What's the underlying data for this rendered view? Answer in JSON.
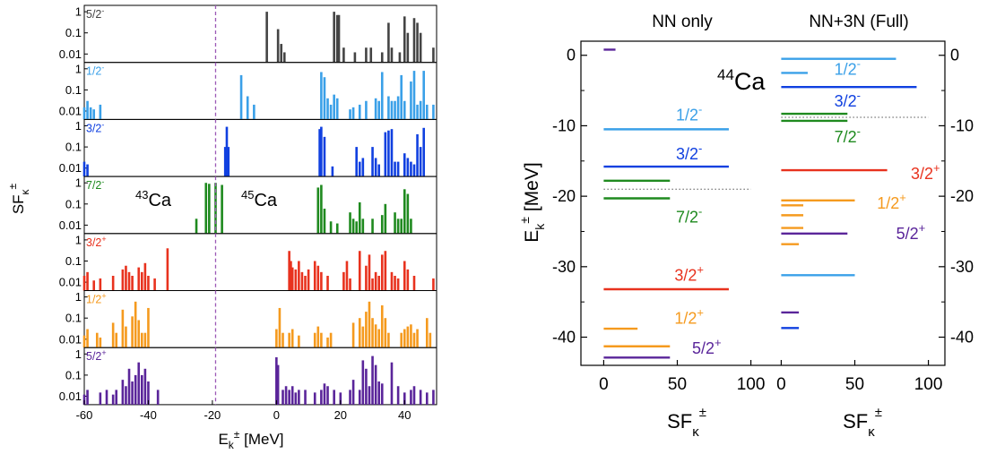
{
  "left_panel": {
    "ylabel": "SF",
    "ylabel_sub": "κ",
    "ylabel_sup": "±",
    "xlabel": "E",
    "xlabel_sub": "k",
    "xlabel_sup": "±",
    "xlabel_unit": "[MeV]",
    "nucleus_left_mass": "43",
    "nucleus_left_sym": "Ca",
    "nucleus_right_mass": "45",
    "nucleus_right_sym": "Ca",
    "ytick_labels": [
      "1",
      "0.1",
      "0.01"
    ],
    "xtick_labels": [
      "-60",
      "-40",
      "-20",
      "0",
      "20",
      "40"
    ]
  },
  "right_panel": {
    "col1_title": "NN only",
    "col2_title": "NN+3N (Full)",
    "ylabel": "E",
    "ylabel_sub": "k",
    "ylabel_sup": "±",
    "ylabel_unit": "[MeV]",
    "nucleus_mass": "44",
    "nucleus_sym": "Ca",
    "xlabel": "SF",
    "xlabel_sub": "κ",
    "xlabel_sup": "±",
    "ytick_labels": [
      "0",
      "-10",
      "-20",
      "-30",
      "-40"
    ],
    "xtick_labels": [
      "0",
      "50",
      "100"
    ]
  },
  "colors": {
    "5/2-": "#444444",
    "1/2-": "#3aa0e8",
    "3/2-": "#1040e0",
    "7/2-": "#1f8a1f",
    "3/2+": "#e8321e",
    "1/2+": "#f59a1e",
    "5/2+": "#5a259a",
    "fermi": "#9b59b6"
  },
  "chart_data": [
    {
      "type": "bar",
      "title": "",
      "xlabel": "E_k^± [MeV]",
      "ylabel": "SF_κ^±",
      "xlim": [
        -60,
        50
      ],
      "ylim": [
        0.004,
        2
      ],
      "yscale": "log",
      "fermi_energy": -19,
      "series": [
        {
          "name": "5/2-",
          "label_base": "5/2",
          "label_sup": "-",
          "color": "#444444",
          "x": [
            -3,
            0.5,
            1.5,
            2.5,
            18,
            19,
            19.5,
            21,
            24.5,
            28,
            29.5,
            33,
            35,
            36,
            38.5,
            40,
            41,
            43,
            44,
            45,
            49
          ],
          "values": [
            1.0,
            0.15,
            0.03,
            0.012,
            1.0,
            0.7,
            0.7,
            0.02,
            0.012,
            0.02,
            0.02,
            0.012,
            0.3,
            0.02,
            0.012,
            0.6,
            0.1,
            0.5,
            0.3,
            0.1,
            0.02
          ]
        },
        {
          "name": "1/2-",
          "label_base": "1/2",
          "label_sup": "-",
          "color": "#3aa0e8",
          "x": [
            -60,
            -59,
            -58,
            -57,
            -55,
            -11,
            -9,
            -7,
            14,
            15,
            16,
            17,
            18,
            19,
            23,
            24,
            26,
            28,
            31,
            32,
            33,
            35,
            36,
            37,
            38,
            39,
            40,
            42,
            43,
            44,
            45,
            46,
            47,
            49
          ],
          "values": [
            0.015,
            0.03,
            0.015,
            0.012,
            0.02,
            0.5,
            0.05,
            0.02,
            0.7,
            0.4,
            0.04,
            0.02,
            0.06,
            0.04,
            0.012,
            0.015,
            0.02,
            0.03,
            0.04,
            0.03,
            0.7,
            0.05,
            0.03,
            0.03,
            0.05,
            0.5,
            0.03,
            0.25,
            0.8,
            0.02,
            0.03,
            0.8,
            0.02,
            0.02
          ]
        },
        {
          "name": "3/2-",
          "label_base": "3/2",
          "label_sup": "-",
          "color": "#1040e0",
          "x": [
            -60,
            -59,
            -16,
            -15.5,
            -15,
            13.5,
            14,
            15,
            17.5,
            25,
            26,
            27,
            30,
            31,
            32,
            34,
            35,
            36,
            37,
            38,
            40,
            41,
            42,
            43,
            44,
            45,
            46
          ],
          "values": [
            0.02,
            0.015,
            0.1,
            0.9,
            0.1,
            0.7,
            0.9,
            0.3,
            0.012,
            0.1,
            0.02,
            0.03,
            0.1,
            0.03,
            0.015,
            0.5,
            0.6,
            0.7,
            0.02,
            0.02,
            0.05,
            0.03,
            0.02,
            0.015,
            0.4,
            0.1,
            0.8
          ]
        },
        {
          "name": "7/2-",
          "label_base": "7/2",
          "label_sup": "-",
          "color": "#1f8a1f",
          "x": [
            -25,
            -22,
            -21,
            -19,
            -17,
            13,
            14,
            15,
            17,
            19,
            23,
            24,
            25,
            26,
            27,
            30,
            33,
            34,
            37,
            38,
            39,
            40,
            41,
            42
          ],
          "values": [
            0.02,
            1.0,
            0.9,
            1.0,
            0.8,
            0.6,
            0.8,
            0.06,
            0.015,
            0.012,
            0.04,
            0.02,
            0.015,
            0.12,
            0.02,
            0.02,
            0.03,
            0.1,
            0.04,
            0.02,
            0.02,
            0.5,
            0.3,
            0.02
          ]
        },
        {
          "name": "3/2+",
          "label_base": "3/2",
          "label_sup": "+",
          "color": "#e8321e",
          "x": [
            -60,
            -59,
            -57,
            -55,
            -51,
            -48,
            -47,
            -46,
            -45,
            -43,
            -42,
            -41,
            -40,
            -38,
            -34,
            4,
            4.5,
            5,
            6,
            7,
            8,
            9,
            10,
            12,
            13,
            14,
            16,
            21,
            22,
            23,
            26,
            28,
            29,
            30,
            31,
            32,
            33,
            34,
            36,
            37,
            38,
            40,
            41,
            43,
            49
          ],
          "values": [
            0.02,
            0.03,
            0.012,
            0.015,
            0.02,
            0.04,
            0.06,
            0.03,
            0.02,
            0.05,
            0.03,
            0.08,
            0.02,
            0.015,
            0.4,
            0.3,
            0.1,
            0.05,
            0.04,
            0.1,
            0.03,
            0.02,
            0.04,
            0.1,
            0.06,
            0.03,
            0.02,
            0.03,
            0.1,
            0.015,
            0.3,
            0.06,
            0.2,
            0.015,
            0.03,
            0.02,
            0.2,
            0.3,
            0.03,
            0.02,
            0.015,
            0.1,
            0.04,
            0.02,
            0.015
          ]
        },
        {
          "name": "1/2+",
          "label_base": "1/2",
          "label_sup": "+",
          "color": "#f59a1e",
          "x": [
            -60,
            -59,
            -56,
            -55,
            -51,
            -50,
            -48,
            -47,
            -45,
            -44,
            -43,
            -42,
            -41,
            -40,
            0,
            1,
            2,
            4,
            5,
            7,
            12,
            13,
            14,
            16,
            17,
            24,
            26,
            27,
            28,
            29,
            30,
            31,
            32,
            33,
            34,
            35,
            39,
            40,
            41,
            42,
            43,
            44,
            47,
            48
          ],
          "values": [
            0.015,
            0.03,
            0.02,
            0.012,
            0.06,
            0.02,
            0.25,
            0.04,
            0.12,
            0.6,
            0.08,
            0.02,
            0.02,
            0.3,
            0.03,
            0.3,
            0.02,
            0.02,
            0.03,
            0.015,
            0.02,
            0.04,
            0.02,
            0.012,
            0.02,
            0.06,
            0.1,
            0.04,
            0.2,
            0.6,
            0.1,
            0.05,
            0.03,
            0.4,
            0.1,
            0.02,
            0.02,
            0.03,
            0.04,
            0.05,
            0.02,
            0.03,
            0.1,
            0.02
          ]
        },
        {
          "name": "5/2+",
          "label_base": "5/2",
          "label_sup": "+",
          "color": "#5a259a",
          "x": [
            -60,
            -59,
            -55,
            -53,
            -51,
            -50,
            -48,
            -47,
            -46,
            -45,
            -44,
            -43,
            -42,
            -41,
            -40,
            -37,
            0,
            0.5,
            2,
            3,
            4,
            5,
            6,
            7,
            9,
            12,
            14,
            15,
            16,
            18,
            20,
            23,
            24,
            26,
            27,
            28,
            29,
            30,
            31,
            32,
            33,
            36,
            38,
            40,
            42,
            43,
            45,
            47,
            49
          ],
          "values": [
            0.012,
            0.02,
            0.015,
            0.02,
            0.012,
            0.02,
            0.06,
            0.03,
            0.2,
            0.05,
            0.1,
            0.4,
            0.1,
            0.2,
            0.05,
            0.02,
            0.7,
            0.3,
            0.02,
            0.03,
            0.02,
            0.03,
            0.015,
            0.02,
            0.02,
            0.015,
            0.02,
            0.04,
            0.03,
            0.02,
            0.015,
            0.02,
            0.06,
            0.02,
            0.5,
            0.2,
            0.03,
            0.8,
            0.3,
            0.05,
            0.04,
            0.4,
            0.03,
            0.015,
            0.02,
            0.03,
            0.02,
            0.015,
            0.02
          ]
        }
      ]
    },
    {
      "type": "bar",
      "title": "",
      "xlabel": "SF_κ^±",
      "ylabel": "E_k^± [MeV]",
      "ylim": [
        -44,
        2
      ],
      "columns": [
        {
          "name": "NN only",
          "xlim": [
            -10,
            110
          ],
          "fermi_energy": -19,
          "levels": [
            {
              "state": "5/2-",
              "E": 0.8,
              "SF": 8,
              "color": "#5a259a"
            },
            {
              "state": "1/2-",
              "E": -10.5,
              "SF": 85,
              "color": "#3aa0e8"
            },
            {
              "state": "3/2-",
              "E": -15.8,
              "SF": 85,
              "color": "#1040e0"
            },
            {
              "state": "7/2-",
              "E": -17.8,
              "SF": 45,
              "color": "#1f8a1f"
            },
            {
              "state": "7/2-",
              "E": -20.3,
              "SF": 45,
              "color": "#1f8a1f"
            },
            {
              "state": "3/2+",
              "E": -33.2,
              "SF": 85,
              "color": "#e8321e"
            },
            {
              "state": "1/2+",
              "E": -38.8,
              "SF": 23,
              "color": "#f59a1e"
            },
            {
              "state": "1/2+",
              "E": -41.3,
              "SF": 45,
              "color": "#f59a1e"
            },
            {
              "state": "5/2+",
              "E": -42.9,
              "SF": 45,
              "color": "#5a259a"
            }
          ],
          "labels": [
            {
              "text": "1/2",
              "sup": "-",
              "E": -8.5,
              "SF": 58,
              "color": "#3aa0e8"
            },
            {
              "text": "3/2",
              "sup": "-",
              "E": -14.0,
              "SF": 58,
              "color": "#1040e0"
            },
            {
              "text": "7/2",
              "sup": "-",
              "E": -23.0,
              "SF": 58,
              "color": "#1f8a1f"
            },
            {
              "text": "3/2",
              "sup": "+",
              "E": -31.2,
              "SF": 58,
              "color": "#e8321e"
            },
            {
              "text": "1/2",
              "sup": "+",
              "E": -37.3,
              "SF": 58,
              "color": "#f59a1e"
            },
            {
              "text": "5/2",
              "sup": "+",
              "E": -41.6,
              "SF": 70,
              "color": "#5a259a"
            }
          ]
        },
        {
          "name": "NN+3N (Full)",
          "xlim": [
            -10,
            110
          ],
          "fermi_energy": -8.8,
          "levels": [
            {
              "state": "5/2-",
              "E": -0.5,
              "SF": 78,
              "color": "#3aa0e8"
            },
            {
              "state": "1/2-",
              "E": -2.5,
              "SF": 18,
              "color": "#3aa0e8"
            },
            {
              "state": "3/2-",
              "E": -4.5,
              "SF": 92,
              "color": "#1040e0"
            },
            {
              "state": "7/2-",
              "E": -8.3,
              "SF": 45,
              "color": "#1f8a1f"
            },
            {
              "state": "7/2-",
              "E": -9.3,
              "SF": 45,
              "color": "#1f8a1f"
            },
            {
              "state": "3/2+",
              "E": -16.3,
              "SF": 72,
              "color": "#e8321e"
            },
            {
              "state": "1/2+",
              "E": -20.6,
              "SF": 50,
              "color": "#f59a1e"
            },
            {
              "state": "1/2+",
              "E": -21.3,
              "SF": 15,
              "color": "#f59a1e"
            },
            {
              "state": "1/2+",
              "E": -22.7,
              "SF": 15,
              "color": "#f59a1e"
            },
            {
              "state": "1/2+",
              "E": -24.5,
              "SF": 15,
              "color": "#f59a1e"
            },
            {
              "state": "5/2+",
              "E": -25.3,
              "SF": 45,
              "color": "#5a259a"
            },
            {
              "state": "1/2+",
              "E": -26.8,
              "SF": 12,
              "color": "#f59a1e"
            },
            {
              "state": "1/2-",
              "E": -31.2,
              "SF": 50,
              "color": "#3aa0e8"
            },
            {
              "state": "5/2+",
              "E": -36.5,
              "SF": 12,
              "color": "#5a259a"
            },
            {
              "state": "3/2-",
              "E": -38.7,
              "SF": 12,
              "color": "#1040e0"
            }
          ],
          "labels": [
            {
              "text": "1/2",
              "sup": "-",
              "E": -2.0,
              "SF": 45,
              "color": "#3aa0e8"
            },
            {
              "text": "3/2",
              "sup": "-",
              "E": -6.5,
              "SF": 45,
              "color": "#1040e0"
            },
            {
              "text": "7/2",
              "sup": "-",
              "E": -11.6,
              "SF": 45,
              "color": "#1f8a1f"
            },
            {
              "text": "3/2",
              "sup": "+",
              "E": -16.8,
              "SF": 98,
              "color": "#e8321e"
            },
            {
              "text": "1/2",
              "sup": "+",
              "E": -21.0,
              "SF": 75,
              "color": "#f59a1e"
            },
            {
              "text": "5/2",
              "sup": "+",
              "E": -25.3,
              "SF": 88,
              "color": "#5a259a"
            }
          ]
        }
      ]
    }
  ]
}
